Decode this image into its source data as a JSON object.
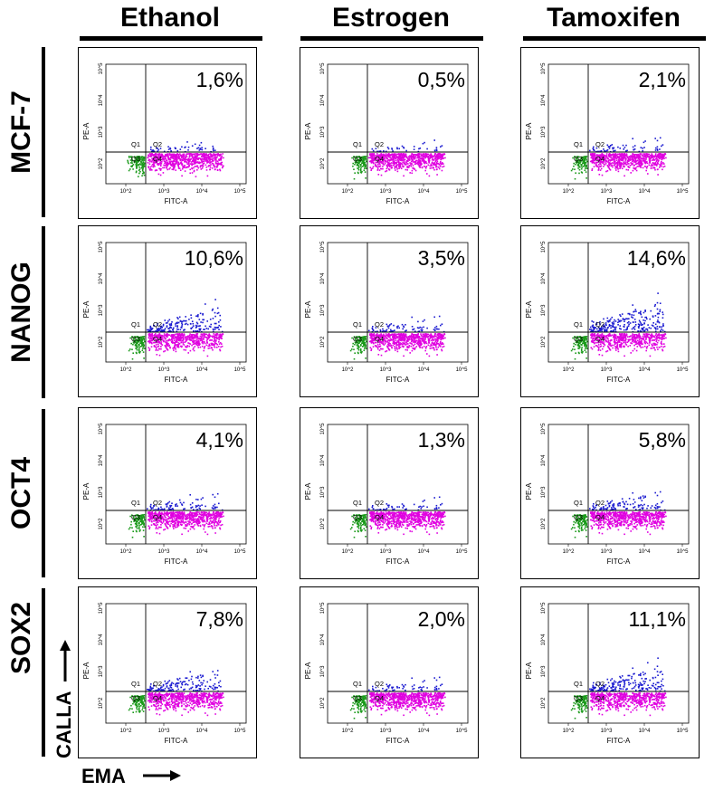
{
  "columns": [
    "Ethanol",
    "Estrogen",
    "Tamoxifen"
  ],
  "rows": [
    "MCF-7",
    "NANOG",
    "OCT4",
    "SOX2"
  ],
  "axis_labels": {
    "x": "EMA",
    "y": "CALLA"
  },
  "plot_axis": {
    "x": "FITC-A",
    "y": "PE-A"
  },
  "quadrant_labels": [
    "Q1",
    "Q2",
    "Q3",
    "Q4"
  ],
  "colors": {
    "q1_q2": "#1a1ad0",
    "q3": "#1a9a1a",
    "q4": "#e000e0"
  },
  "chart_data": {
    "type": "scatter",
    "grid_of_panels": "4 rows x 3 columns",
    "x_ticks": [
      "10^2",
      "10^3",
      "10^4",
      "10^5"
    ],
    "y_ticks": [
      "10^2",
      "10^3",
      "10^4",
      "10^5"
    ],
    "percentages": [
      [
        "1,6%",
        "0,5%",
        "2,1%"
      ],
      [
        "10,6%",
        "3,5%",
        "14,6%"
      ],
      [
        "4,1%",
        "1,3%",
        "5,8%"
      ],
      [
        "7,8%",
        "2,0%",
        "11,1%"
      ]
    ]
  }
}
